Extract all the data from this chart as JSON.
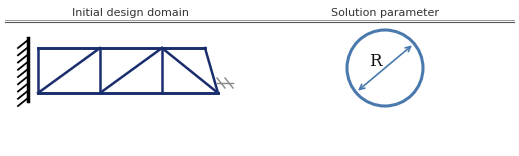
{
  "title_left": "Initial design domain",
  "title_right": "Solution parameter",
  "truss_color": "#1a2e6e",
  "truss_lw": 1.8,
  "circle_color": "#4a7aad",
  "circle_lw": 2.2,
  "arrow_color": "#4a7aad",
  "hatch_color": "#000000",
  "R_label": "R",
  "bg_color": "#ffffff",
  "fig_width": 5.19,
  "fig_height": 1.56,
  "dpi": 100
}
